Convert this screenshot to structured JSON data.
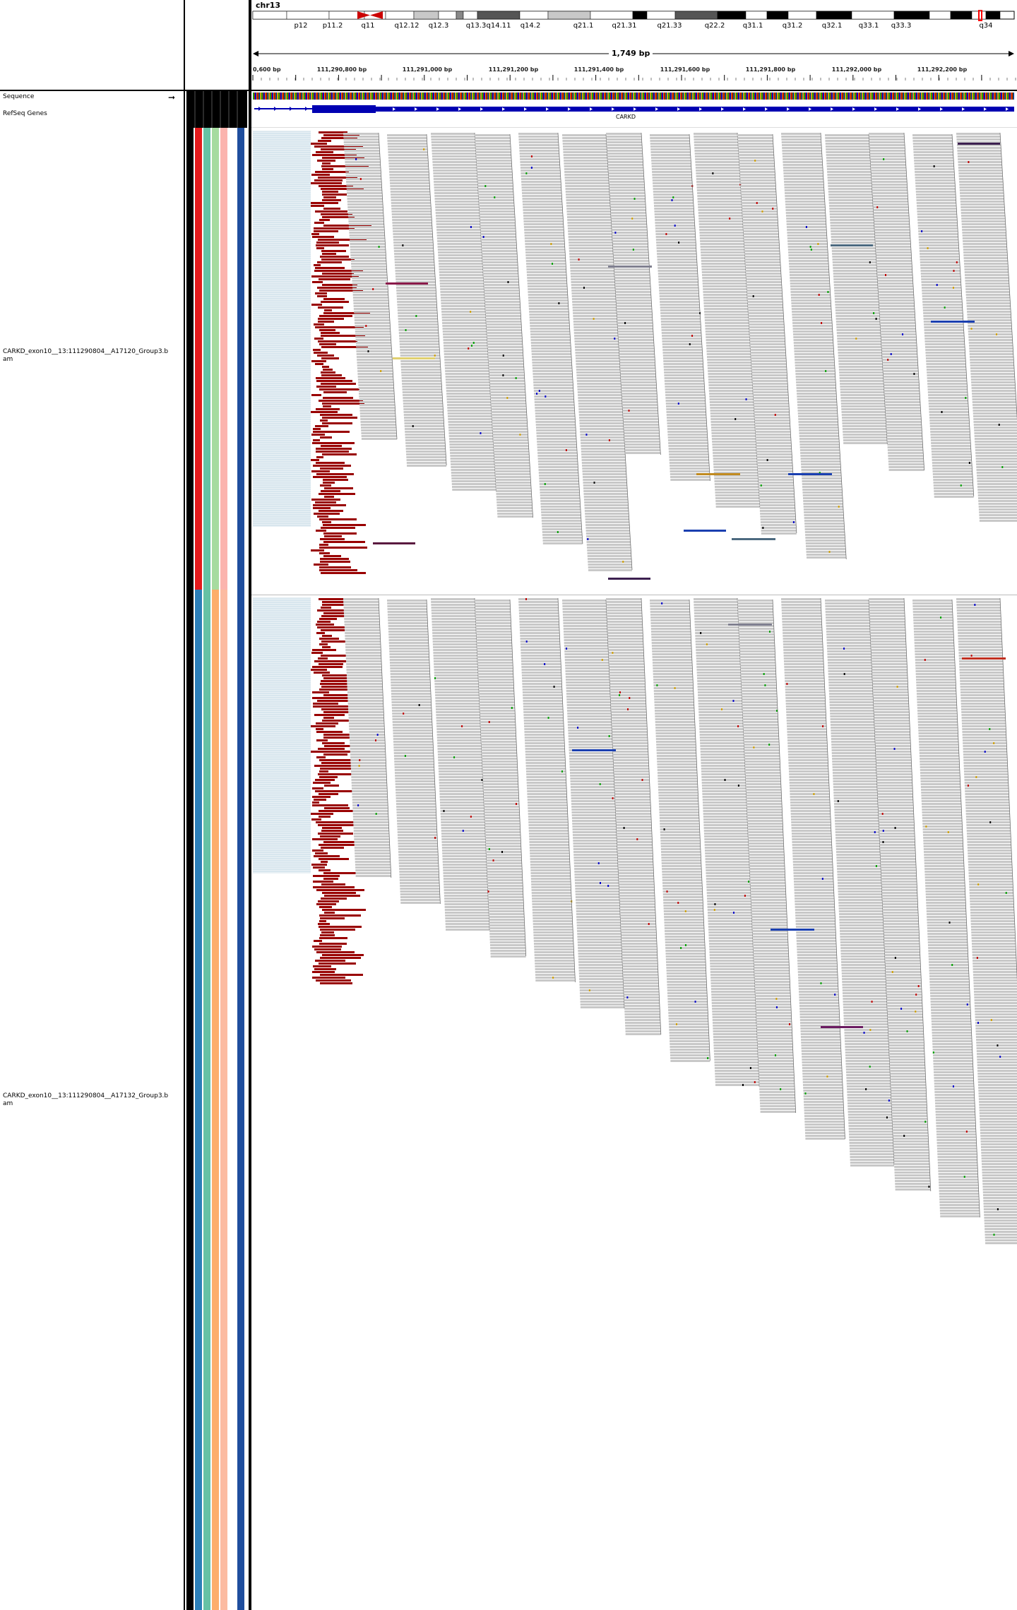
{
  "header": {
    "chromosome": "chr13",
    "span_label": "1,749 bp",
    "cytobands": [
      "p12",
      "p11.2",
      "q11",
      "q12.12",
      "q12.3",
      "q13.3",
      "q14.11",
      "q14.2",
      "q21.1",
      "q21.31",
      "q21.33",
      "q22.2",
      "q31.1",
      "q31.2",
      "q32.1",
      "q33.1",
      "q33.3",
      "q34"
    ],
    "ruler_ticks": [
      "0,600 bp",
      "111,290,800 bp",
      "111,291,000 bp",
      "111,291,200 bp",
      "111,291,400 bp",
      "111,291,600 bp",
      "111,291,800 bp",
      "111,292,000 bp",
      "111,292,200 bp"
    ]
  },
  "tracks": {
    "sequence_label": "Sequence",
    "refseq_label": "RefSeq Genes",
    "gene_name": "CARKD",
    "bam1_label_line1": "CARKD_exon10__13:111290804__A17120_Group3.b",
    "bam1_label_line2": "am",
    "bam2_label_line1": "CARKD_exon10__13:111290804__A17132_Group3.b",
    "bam2_label_line2": "am"
  },
  "colors": {
    "read_gray": "#c8c8c8",
    "soft_clip_red": "#990000",
    "gene_blue": "#0000b2",
    "group1_attrs": [
      "#000000",
      "#e41a1c",
      "#66c2a5",
      "#a6dba0",
      "#fbb4ae",
      "#ffffff",
      "#1f4e9e"
    ],
    "group2_attrs": [
      "#000000",
      "#2c7fb8",
      "#66c2a5",
      "#fdae6b",
      "#fcbba1",
      "#ffffff",
      "#1f4e9e"
    ]
  },
  "icons": {
    "sequence_arrow": "right-arrow-icon"
  }
}
